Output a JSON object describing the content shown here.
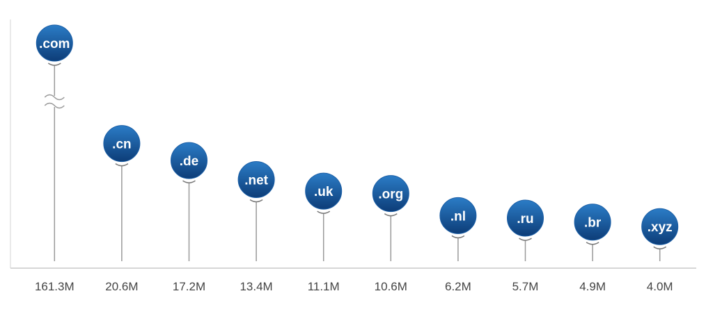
{
  "chart_data": {
    "type": "lollipop",
    "color": "#1a5ea6",
    "categories": [
      ".com",
      ".cn",
      ".de",
      ".net",
      ".uk",
      ".org",
      ".nl",
      ".ru",
      ".br",
      ".xyz"
    ],
    "values": [
      161.3,
      20.6,
      17.2,
      13.4,
      11.1,
      10.6,
      6.2,
      5.7,
      4.9,
      4.0
    ],
    "value_labels": [
      "161.3M",
      "20.6M",
      "17.2M",
      "13.4M",
      "11.1M",
      "10.6M",
      "6.2M",
      "5.7M",
      "4.9M",
      "4.0M"
    ]
  }
}
